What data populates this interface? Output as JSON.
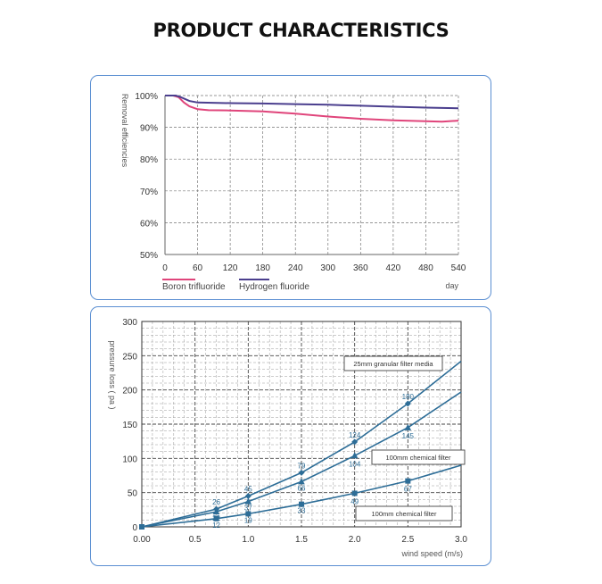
{
  "page": {
    "title": "PRODUCT CHARACTERISTICS"
  },
  "chart_data": [
    {
      "type": "line",
      "title": "",
      "ylabel": "Removal efficiencies",
      "xlabel": "day",
      "x_ticks": [
        "0",
        "60",
        "120",
        "180",
        "240",
        "300",
        "360",
        "420",
        "480",
        "540"
      ],
      "y_ticks": [
        "50%",
        "60%",
        "70%",
        "80%",
        "90%",
        "100%"
      ],
      "xlim": [
        0,
        540
      ],
      "ylim": [
        50,
        100
      ],
      "grid": true,
      "legend_position": "bottom-left",
      "series": [
        {
          "name": "Boron trifluoride",
          "color": "#e0457b",
          "x": [
            0,
            15,
            25,
            35,
            45,
            60,
            80,
            120,
            180,
            240,
            300,
            360,
            420,
            480,
            510,
            540
          ],
          "y": [
            100,
            100,
            99.5,
            97.8,
            96.6,
            95.7,
            95.4,
            95.3,
            95.0,
            94.3,
            93.4,
            92.7,
            92.2,
            91.9,
            91.8,
            92.1
          ]
        },
        {
          "name": "Hydrogen fluoride",
          "color": "#4b3f8e",
          "x": [
            0,
            20,
            30,
            45,
            60,
            120,
            180,
            240,
            300,
            360,
            420,
            480,
            540
          ],
          "y": [
            100,
            100,
            99.4,
            98.3,
            97.8,
            97.6,
            97.5,
            97.3,
            97.1,
            96.8,
            96.5,
            96.2,
            96.0
          ]
        }
      ]
    },
    {
      "type": "line",
      "title": "",
      "ylabel": "pressure loss ( pa )",
      "xlabel": "wind speed (m/s)",
      "x_ticks": [
        "0.00",
        "0.5",
        "1.0",
        "1.5",
        "2.0",
        "2.5",
        "3.0"
      ],
      "y_ticks": [
        "0",
        "50",
        "100",
        "150",
        "200",
        "250",
        "300"
      ],
      "xlim": [
        0,
        3
      ],
      "ylim": [
        0,
        300
      ],
      "grid": true,
      "series": [
        {
          "name": "25mm granular filter media",
          "color": "#2d6d97",
          "x": [
            0,
            0.7,
            1.0,
            1.5,
            2.0,
            2.5,
            3.0
          ],
          "y": [
            0,
            26,
            45,
            79,
            124,
            180,
            242
          ],
          "labels": [
            "",
            "26",
            "45",
            "79",
            "124",
            "180",
            ""
          ]
        },
        {
          "name": "100mm chemical filter",
          "color": "#2d6d97",
          "x": [
            0,
            0.7,
            1.0,
            1.5,
            2.0,
            2.5,
            3.0
          ],
          "y": [
            0,
            22,
            37,
            66,
            104,
            145,
            197
          ],
          "labels": [
            "",
            "22",
            "37",
            "66",
            "104",
            "145",
            ""
          ]
        },
        {
          "name": "100mm chemical filter",
          "color": "#2d6d97",
          "x": [
            0,
            0.7,
            1.0,
            1.5,
            2.0,
            2.5,
            3.0
          ],
          "y": [
            0,
            12,
            19,
            33,
            49,
            67,
            90
          ],
          "labels": [
            "",
            "12",
            "19",
            "33",
            "49",
            "67",
            ""
          ]
        }
      ]
    }
  ]
}
